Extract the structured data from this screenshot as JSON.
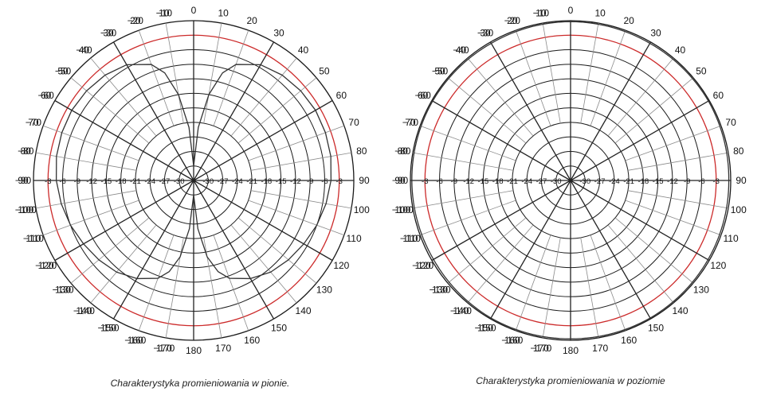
{
  "chart_data": [
    {
      "type": "polar",
      "caption": "Charakterystyka promieniowania w pionie.",
      "angle_ticks": [
        "0",
        "10",
        "20",
        "30",
        "40",
        "50",
        "60",
        "70",
        "80",
        "90",
        "100",
        "110",
        "120",
        "130",
        "140",
        "150",
        "160",
        "170",
        "180",
        "170",
        "160",
        "150",
        "140",
        "130",
        "120",
        "110",
        "100",
        "90",
        "80",
        "70",
        "60",
        "50",
        "40",
        "30",
        "20",
        "10",
        "−10",
        "−20",
        "−30",
        "−40",
        "−50",
        "−60",
        "−70",
        "−80",
        "−90",
        "−100",
        "−110",
        "−120",
        "−130",
        "−140",
        "−150",
        "−160",
        "−170"
      ],
      "angle_tick_values": [
        0,
        10,
        20,
        30,
        40,
        50,
        60,
        70,
        80,
        90,
        100,
        110,
        120,
        130,
        140,
        150,
        160,
        170,
        180,
        190,
        200,
        210,
        220,
        230,
        240,
        250,
        260,
        270,
        280,
        290,
        300,
        310,
        320,
        330,
        340,
        350,
        -10,
        -20,
        -30,
        -40,
        -50,
        -60,
        -70,
        -80,
        -90,
        -100,
        -110,
        -120,
        -130,
        -140,
        -150,
        -160,
        -170
      ],
      "radial_ticks": [
        "-3",
        "-6",
        "-9",
        "-12",
        "-15",
        "-18",
        "-21",
        "-24",
        "-27",
        "-30"
      ],
      "radial_values": [
        -3,
        -6,
        -9,
        -12,
        -15,
        -18,
        -21,
        -24,
        -27,
        -30
      ],
      "radial_range": [
        -33,
        0
      ],
      "reference_level": -3,
      "reference_color": "#cc2a2a",
      "grid_color": "#1a1a1a",
      "series": [
        {
          "angles": [
            0,
            5,
            10,
            15,
            20,
            30,
            40,
            50,
            60,
            70,
            80,
            90,
            100,
            110,
            120,
            130,
            140,
            150,
            160,
            165,
            170,
            175,
            180,
            185,
            190,
            195,
            200,
            210,
            220,
            230,
            240,
            250,
            260,
            270,
            280,
            290,
            300,
            310,
            320,
            330,
            340,
            345,
            350,
            355,
            360
          ],
          "values": [
            -30,
            -22,
            -15,
            -10,
            -7.5,
            -5.4,
            -4.6,
            -4.2,
            -4,
            -4.1,
            -4.3,
            -4.7,
            -5.3,
            -6,
            -6.8,
            -7.5,
            -8.3,
            -9.6,
            -11.5,
            -13.5,
            -17,
            -23,
            -30,
            -23,
            -17,
            -13.5,
            -11.5,
            -9.6,
            -8.3,
            -7.5,
            -6.8,
            -6,
            -5.3,
            -4.7,
            -4.3,
            -4.1,
            -4,
            -4.2,
            -4.6,
            -5.4,
            -7.5,
            -10,
            -15,
            -22,
            -30
          ]
        }
      ]
    },
    {
      "type": "polar",
      "caption": "Charakterystyka promieniowania w poziomie",
      "angle_ticks": [
        "0",
        "10",
        "20",
        "30",
        "40",
        "50",
        "60",
        "70",
        "80",
        "90",
        "100",
        "110",
        "120",
        "130",
        "140",
        "150",
        "160",
        "170",
        "180",
        "170",
        "160",
        "150",
        "140",
        "130",
        "120",
        "110",
        "100",
        "90",
        "80",
        "70",
        "60",
        "50",
        "40",
        "30",
        "20",
        "10",
        "−10",
        "−20",
        "−30",
        "−40",
        "−50",
        "−60",
        "−70",
        "−80",
        "−90",
        "−100",
        "−110",
        "−120",
        "−130",
        "−140",
        "−150",
        "−160",
        "−170"
      ],
      "angle_tick_values": [
        0,
        10,
        20,
        30,
        40,
        50,
        60,
        70,
        80,
        90,
        100,
        110,
        120,
        130,
        140,
        150,
        160,
        170,
        180,
        190,
        200,
        210,
        220,
        230,
        240,
        250,
        260,
        270,
        280,
        290,
        300,
        310,
        320,
        330,
        340,
        350,
        -10,
        -20,
        -30,
        -40,
        -50,
        -60,
        -70,
        -80,
        -90,
        -100,
        -110,
        -120,
        -130,
        -140,
        -150,
        -160,
        -170
      ],
      "radial_ticks": [
        "-3",
        "-6",
        "-9",
        "-12",
        "-15",
        "-18",
        "-21",
        "-24",
        "-27",
        "-30"
      ],
      "radial_values": [
        -3,
        -6,
        -9,
        -12,
        -15,
        -18,
        -21,
        -24,
        -27,
        -30
      ],
      "radial_range": [
        -33,
        0
      ],
      "reference_level": -3,
      "reference_color": "#cc2a2a",
      "grid_color": "#1a1a1a",
      "series": [
        {
          "angles": [
            0,
            30,
            60,
            90,
            120,
            150,
            180,
            210,
            240,
            270,
            300,
            330,
            360
          ],
          "values": [
            -0.2,
            -0.3,
            -0.2,
            -0.4,
            -0.3,
            -0.2,
            -0.3,
            -0.2,
            -0.4,
            -0.3,
            -0.2,
            -0.3,
            -0.2
          ]
        }
      ]
    }
  ]
}
